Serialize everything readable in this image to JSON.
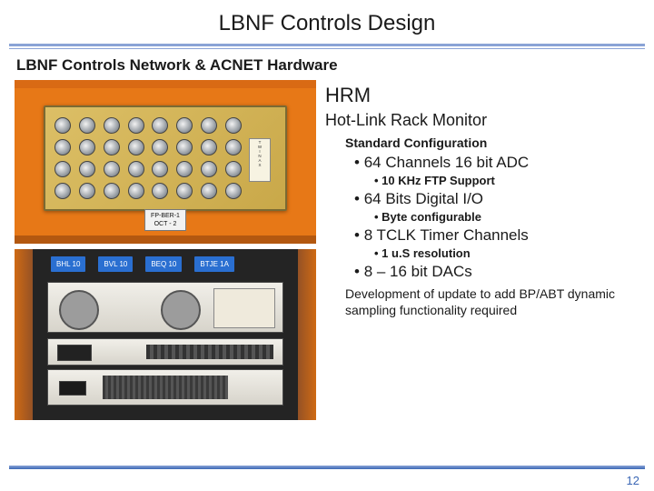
{
  "colors": {
    "rule_blue": "#3b67b5",
    "rule_light": "#8aa3d6",
    "orange_bg": "#e77817",
    "board_gold": "#c9a849",
    "label_blue": "#2a6fd1",
    "text": "#1a1a1a",
    "background": "#ffffff"
  },
  "title": "LBNF Controls Design",
  "subtitle": "LBNF Controls Network & ACNET Hardware",
  "page_number": "12",
  "photo_top": {
    "tag_line1": "FP-BER-1",
    "tag_line2": "OCT - 2",
    "twinax_label": "T\nW\nI\nN\nA\nX"
  },
  "photo_bottom": {
    "labels": [
      "BHL 10",
      "BVL 10",
      "BEQ 10",
      "BTJE 1A"
    ]
  },
  "right": {
    "hrm_title": "HRM",
    "hrm_sub": "Hot-Link Rack Monitor",
    "config_heading": "Standard Configuration",
    "bullets": [
      {
        "text": "64 Channels 16 bit ADC",
        "sub": "10 KHz FTP Support"
      },
      {
        "text": "64 Bits Digital I/O",
        "sub": "Byte configurable"
      },
      {
        "text": "8 TCLK Timer Channels",
        "sub": "1 u.S resolution"
      },
      {
        "text": "8 – 16 bit DACs",
        "sub": null
      }
    ],
    "dev_note": "Development of update to add BP/ABT dynamic sampling functionality required"
  }
}
